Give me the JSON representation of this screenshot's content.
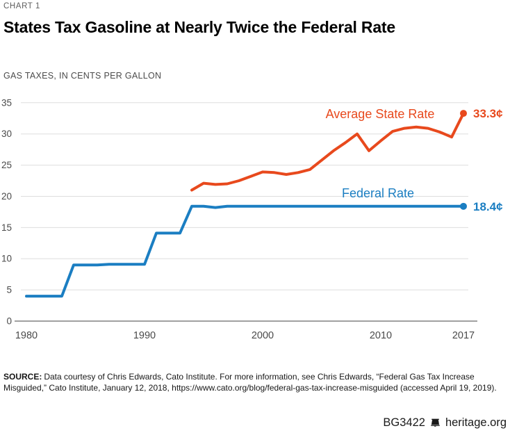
{
  "page": {
    "kicker": "CHART 1",
    "title": "States Tax Gasoline at Nearly Twice the Federal Rate",
    "subtitle": "GAS TAXES, IN CENTS PER GALLON"
  },
  "chart_data": {
    "type": "line",
    "title": "States Tax Gasoline at Nearly Twice the Federal Rate",
    "ylabel": "GAS TAXES, IN CENTS PER GALLON",
    "xlim": [
      1980,
      2017
    ],
    "ylim": [
      0,
      35
    ],
    "x_ticks": [
      1980,
      1990,
      2000,
      2010,
      2017
    ],
    "y_ticks": [
      0,
      5,
      10,
      15,
      20,
      25,
      30,
      35
    ],
    "grid": "horizontal",
    "legend_position": "inline-labels",
    "series": [
      {
        "name": "Federal Rate",
        "color": "#1b7ec2",
        "end_label": "18.4¢",
        "points": [
          [
            1980,
            4
          ],
          [
            1983,
            4
          ],
          [
            1984,
            9
          ],
          [
            1986,
            9
          ],
          [
            1987,
            9.1
          ],
          [
            1990,
            9.1
          ],
          [
            1991,
            14.1
          ],
          [
            1993,
            14.1
          ],
          [
            1994,
            18.4
          ],
          [
            1995,
            18.4
          ],
          [
            1996,
            18.2
          ],
          [
            1997,
            18.4
          ],
          [
            2017,
            18.4
          ]
        ]
      },
      {
        "name": "Average State Rate",
        "color": "#e8491d",
        "end_label": "33.3¢",
        "points": [
          [
            1994,
            21.0
          ],
          [
            1995,
            22.1
          ],
          [
            1996,
            21.9
          ],
          [
            1997,
            22.0
          ],
          [
            1998,
            22.5
          ],
          [
            1999,
            23.2
          ],
          [
            2000,
            23.9
          ],
          [
            2001,
            23.8
          ],
          [
            2002,
            23.5
          ],
          [
            2003,
            23.8
          ],
          [
            2004,
            24.3
          ],
          [
            2005,
            25.8
          ],
          [
            2006,
            27.3
          ],
          [
            2007,
            28.6
          ],
          [
            2008,
            30.0
          ],
          [
            2009,
            27.3
          ],
          [
            2010,
            28.9
          ],
          [
            2011,
            30.4
          ],
          [
            2012,
            30.9
          ],
          [
            2013,
            31.1
          ],
          [
            2014,
            30.9
          ],
          [
            2015,
            30.3
          ],
          [
            2016,
            29.5
          ],
          [
            2017,
            33.3
          ]
        ]
      }
    ]
  },
  "footer": {
    "source_label": "SOURCE:",
    "source_text": "Data courtesy of Chris Edwards, Cato Institute. For more information, see Chris Edwards, “Federal Gas Tax Increase Misguided,” Cato Institute, January 12, 2018, https://www.cato.org/blog/federal-gas-tax-increase-misguided (accessed April 19, 2019).",
    "doc_id": "BG3422",
    "site": "heritage.org"
  }
}
